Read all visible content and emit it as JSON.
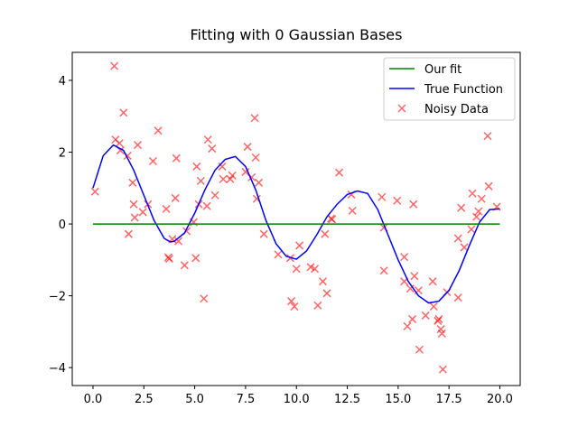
{
  "chart_data": {
    "type": "line",
    "title": "Fitting with 0 Gaussian Bases",
    "xlim": [
      -1.02,
      21.0
    ],
    "ylim": [
      -4.5,
      4.78
    ],
    "xticks": [
      {
        "value": 0,
        "label": "0.0"
      },
      {
        "value": 2.5,
        "label": "2.5"
      },
      {
        "value": 5,
        "label": "5.0"
      },
      {
        "value": 7.5,
        "label": "7.5"
      },
      {
        "value": 10,
        "label": "10.0"
      },
      {
        "value": 12.5,
        "label": "12.5"
      },
      {
        "value": 15,
        "label": "15.0"
      },
      {
        "value": 17.5,
        "label": "17.5"
      },
      {
        "value": 20,
        "label": "20.0"
      }
    ],
    "yticks": [
      {
        "value": -4,
        "label": "−4"
      },
      {
        "value": -2,
        "label": "−2"
      },
      0,
      2,
      4
    ],
    "legend": "upper right",
    "series": [
      {
        "name": "Our fit",
        "type": "line",
        "color": "#008000",
        "x": [
          0,
          20
        ],
        "values": [
          0,
          0
        ]
      },
      {
        "name": "True Function",
        "type": "line",
        "color": "#0000ff",
        "x": [
          0,
          0.5,
          1,
          1.5,
          2,
          2.5,
          3,
          3.5,
          3.8,
          4,
          4.5,
          5,
          5.5,
          6,
          6.5,
          7,
          7.5,
          8,
          8.5,
          9,
          9.5,
          10,
          10.5,
          11,
          11.5,
          12,
          12.5,
          13,
          13.5,
          14,
          14.5,
          15,
          15.5,
          16,
          16.5,
          17,
          17.5,
          18,
          18.5,
          19,
          19.5,
          20
        ],
        "values": [
          1.0,
          1.9,
          2.2,
          2.05,
          1.5,
          0.8,
          0.1,
          -0.4,
          -0.5,
          -0.48,
          -0.25,
          0.3,
          0.95,
          1.5,
          1.8,
          1.88,
          1.6,
          0.95,
          0.1,
          -0.55,
          -0.9,
          -0.98,
          -0.75,
          -0.3,
          0.2,
          0.55,
          0.82,
          0.92,
          0.85,
          0.4,
          -0.3,
          -1.0,
          -1.6,
          -2.0,
          -2.2,
          -2.15,
          -1.85,
          -1.3,
          -0.6,
          0.05,
          0.4,
          0.42
        ]
      },
      {
        "name": "Noisy Data",
        "type": "scatter",
        "color": "#ff0000",
        "alpha": 0.6,
        "x": [
          0.1,
          1.05,
          1.1,
          1.3,
          1.5,
          1.35,
          1.7,
          1.75,
          1.95,
          2.0,
          2.05,
          2.2,
          2.45,
          2.7,
          2.95,
          3.2,
          3.6,
          3.7,
          3.75,
          3.9,
          4.1,
          4.05,
          4.2,
          4.5,
          4.6,
          4.95,
          5.05,
          5.1,
          5.2,
          5.3,
          5.45,
          5.6,
          5.65,
          5.85,
          6.0,
          6.35,
          6.4,
          6.75,
          6.85,
          7.5,
          7.6,
          7.8,
          7.95,
          8.0,
          8.05,
          8.15,
          8.4,
          9.1,
          9.7,
          9.75,
          9.9,
          10.0,
          10.15,
          10.7,
          10.9,
          11.05,
          11.3,
          11.4,
          11.5,
          11.7,
          11.75,
          12.1,
          12.7,
          12.75,
          14.2,
          14.3,
          14.3,
          14.95,
          15.3,
          15.3,
          15.45,
          15.6,
          15.7,
          15.75,
          15.8,
          16.05,
          16.0,
          16.35,
          16.7,
          16.75,
          16.95,
          17.0,
          17.1,
          17.15,
          17.2,
          17.4,
          17.95,
          17.95,
          18.1,
          18.25,
          18.6,
          18.65,
          18.85,
          18.95,
          19.1,
          19.4,
          19.45,
          19.85
        ],
        "values": [
          0.9,
          4.4,
          2.35,
          2.25,
          3.1,
          2.05,
          1.9,
          -0.28,
          1.15,
          0.55,
          0.18,
          2.2,
          0.33,
          0.55,
          1.75,
          2.6,
          0.42,
          -0.93,
          -0.97,
          -0.42,
          1.83,
          0.72,
          -0.48,
          -1.15,
          -0.2,
          0.05,
          -0.95,
          1.6,
          0.55,
          1.2,
          -2.08,
          0.5,
          2.35,
          2.1,
          0.8,
          1.6,
          1.25,
          1.25,
          1.35,
          1.45,
          2.15,
          1.3,
          2.95,
          1.85,
          0.7,
          1.15,
          -0.28,
          -0.85,
          -0.95,
          -2.15,
          -2.3,
          -1.25,
          -0.6,
          -1.2,
          -1.25,
          -2.27,
          -1.6,
          -0.28,
          -1.93,
          0.15,
          0.13,
          1.43,
          0.82,
          0.37,
          0.75,
          -0.1,
          -1.3,
          0.65,
          -0.92,
          -1.6,
          -2.85,
          -1.8,
          -2.65,
          0.55,
          -1.45,
          -3.5,
          -1.85,
          -2.55,
          -1.6,
          -2.3,
          -2.7,
          -2.65,
          -2.93,
          -3.05,
          -4.05,
          -1.9,
          -2.05,
          -0.4,
          0.45,
          -0.65,
          -0.15,
          0.85,
          0.2,
          0.35,
          0.7,
          2.45,
          1.05,
          0.48
        ]
      }
    ]
  }
}
